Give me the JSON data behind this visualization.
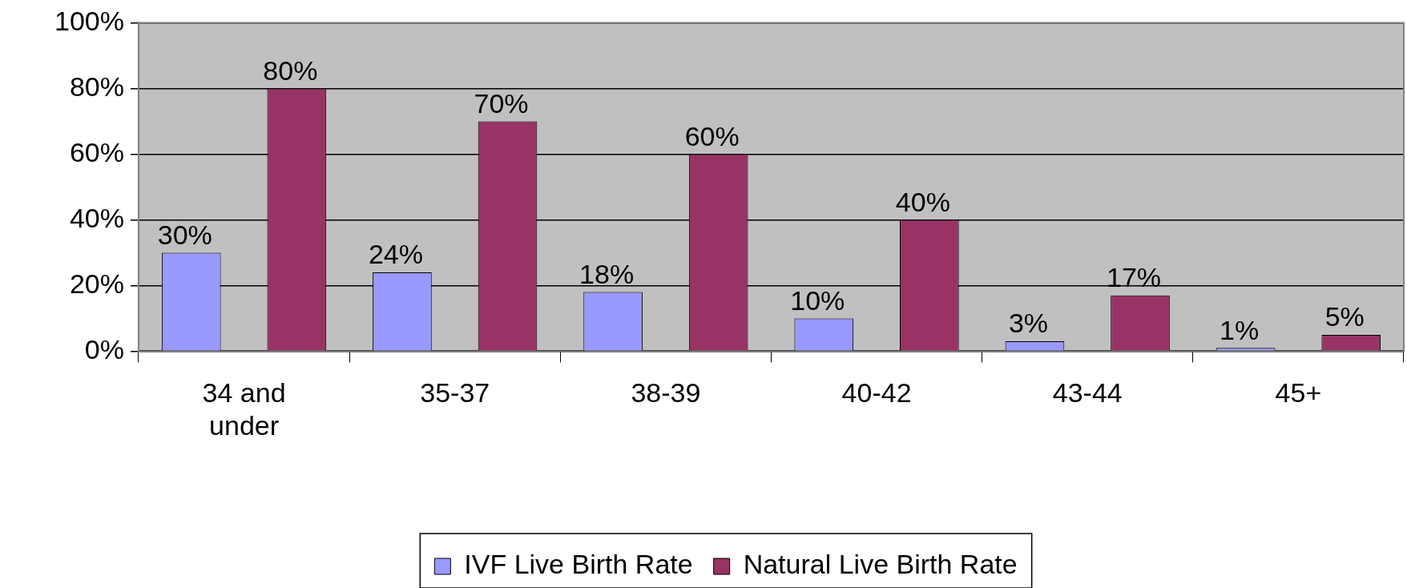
{
  "chart_data": {
    "type": "bar",
    "categories": [
      "34 and under",
      "35-37",
      "38-39",
      "40-42",
      "43-44",
      "45+"
    ],
    "series": [
      {
        "name": "IVF Live Birth Rate",
        "color": "#9999ff",
        "values": [
          30,
          24,
          18,
          10,
          3,
          1
        ],
        "value_labels": [
          "30%",
          "24%",
          "18%",
          "10%",
          "3%",
          "1%"
        ]
      },
      {
        "name": "Natural Live Birth Rate",
        "color": "#993366",
        "values": [
          80,
          70,
          60,
          40,
          17,
          5
        ],
        "value_labels": [
          "80%",
          "70%",
          "60%",
          "40%",
          "17%",
          "5%"
        ]
      }
    ],
    "ylim": [
      0,
      100
    ],
    "yticks": [
      {
        "value": 0,
        "label": "0%"
      },
      {
        "value": 20,
        "label": "20%"
      },
      {
        "value": 40,
        "label": "40%"
      },
      {
        "value": 60,
        "label": "60%"
      },
      {
        "value": 80,
        "label": "80%"
      },
      {
        "value": 100,
        "label": "100%"
      }
    ],
    "grid": "y",
    "legend": "bottom"
  }
}
